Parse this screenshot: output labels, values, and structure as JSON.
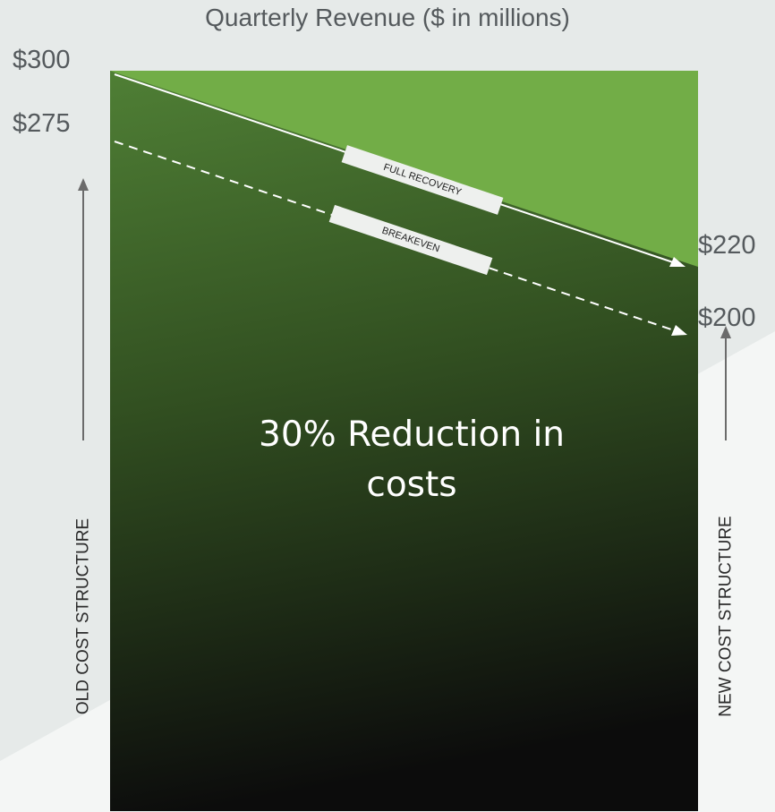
{
  "title": "Quarterly Revenue ($ in millions)",
  "left_values": {
    "top": "$300",
    "second": "$275"
  },
  "right_values": {
    "top": "$220",
    "second": "$200"
  },
  "lines": {
    "full_recovery": {
      "label": "FULL RECOVERY",
      "start": 300,
      "end": 220,
      "style": "solid"
    },
    "breakeven": {
      "label": "BREAKEVEN",
      "start": 275,
      "end": 200,
      "style": "dashed"
    }
  },
  "center_text": {
    "line1": "30% Reduction in",
    "line2": "costs"
  },
  "axis_labels": {
    "left": "OLD COST STRUCTURE",
    "right": "NEW COST STRUCTURE"
  },
  "colors": {
    "background": "#e9eceb",
    "light_green": "#72ad47",
    "dark_green_top": "#4d7d33",
    "dark_bottom": "#0d0d0d",
    "arrow_gray": "#6b6b6b"
  }
}
